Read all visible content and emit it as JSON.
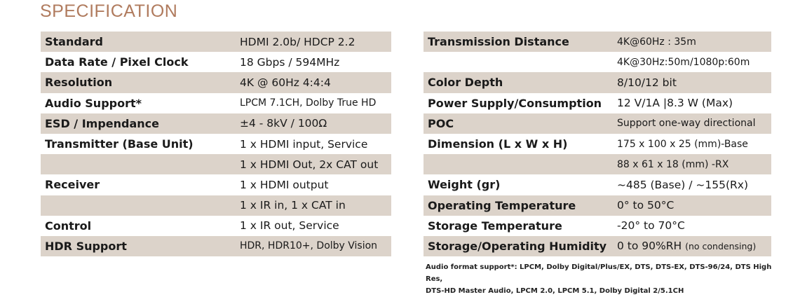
{
  "title": "SPECIFICATION",
  "left_rows": [
    {
      "label": "Standard",
      "value": "HDMI 2.0b/ HDCP 2.2",
      "shaded": true
    },
    {
      "label": "Data Rate / Pixel Clock",
      "value": "18 Gbps / 594MHz",
      "shaded": false
    },
    {
      "label": "Resolution",
      "value": "4K @ 60Hz 4:4:4",
      "shaded": true
    },
    {
      "label": "Audio Support*",
      "value": "LPCM 7.1CH, Dolby True HD",
      "shaded": false
    },
    {
      "label": "ESD / Impendance",
      "value": "±4 - 8kV / 100Ω",
      "shaded": true
    },
    {
      "label": "Transmitter (Base Unit)",
      "value": "1 x HDMI input, Service",
      "shaded": false
    },
    {
      "label": "",
      "value": "1 x HDMI Out, 2x CAT out",
      "shaded": true
    },
    {
      "label": "Receiver",
      "value": "1 x HDMI output",
      "shaded": false
    },
    {
      "label": "",
      "value": "1 x IR in, 1 x CAT in",
      "shaded": true
    },
    {
      "label": "Control",
      "value": "1 x IR out, Service",
      "shaded": false
    },
    {
      "label": "HDR Support",
      "value": "HDR, HDR10+, Dolby Vision",
      "shaded": true
    }
  ],
  "right_rows": [
    {
      "label": "Transmission Distance",
      "value": "4K@60Hz : 35m",
      "shaded": true
    },
    {
      "label": "",
      "value": "4K@30Hz:50m/1080p:60m",
      "shaded": false
    },
    {
      "label": "Color Depth",
      "value": "8/10/12 bit",
      "shaded": true
    },
    {
      "label": "Power Supply/Consumption",
      "value": "12 V/1A |8.3 W (Max)",
      "shaded": false
    },
    {
      "label": "POC",
      "value": "Support one-way directional",
      "shaded": true
    },
    {
      "label": "Dimension (L x W x H)",
      "value": "175 x 100 x 25 (mm)-Base",
      "shaded": false
    },
    {
      "label": "",
      "value": "88 x 61 x 18 (mm) -RX",
      "shaded": true
    },
    {
      "label": "Weight (gr)",
      "value": "~485 (Base) / ~155(Rx)",
      "shaded": false
    },
    {
      "label": "Operating Temperature",
      "value": "0° to 50°C",
      "shaded": true
    },
    {
      "label": "Storage Temperature",
      "value": "-20° to 70°C",
      "shaded": false
    },
    {
      "label": "Storage/Operating Humidity",
      "value": "0 to 90%RH",
      "value_note": "(no condensing)",
      "shaded": true
    }
  ],
  "footnote": {
    "line1": "Audio format support*: LPCM, Dolby Digital/Plus/EX, DTS, DTS-EX, DTS-96/24, DTS High Res,",
    "line2": "DTS-HD Master Audio, LPCM 2.0, LPCM 5.1, Dolby Digital 2/5.1CH"
  },
  "colors": {
    "title": "#b07b5e",
    "row_shade": "#dcd3ca"
  }
}
